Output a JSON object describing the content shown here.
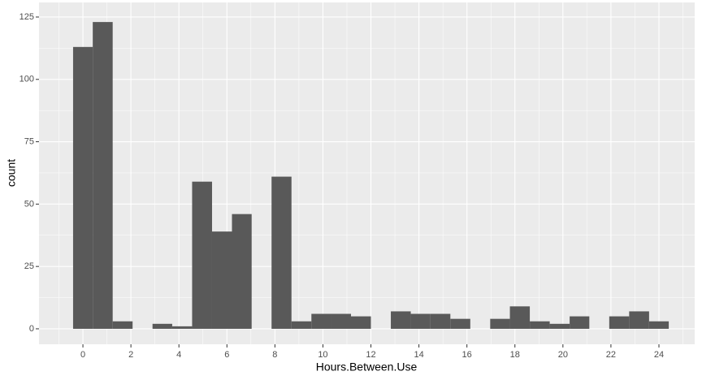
{
  "chart_data": {
    "type": "histogram",
    "xlabel": "Hours.Between.Use",
    "ylabel": "count",
    "bins": [
      -0.41,
      0.41,
      1.24,
      2.07,
      2.9,
      3.72,
      4.55,
      5.38,
      6.21,
      7.03,
      7.86,
      8.69,
      9.52,
      10.34,
      11.17,
      12.0,
      12.83,
      13.66,
      14.48,
      15.31,
      16.14,
      16.97,
      17.79,
      18.62,
      19.45,
      20.28,
      21.1,
      21.93,
      22.76,
      23.59,
      24.41
    ],
    "values": [
      113,
      123,
      3,
      0,
      2,
      1,
      59,
      39,
      46,
      0,
      61,
      3,
      6,
      6,
      5,
      0,
      7,
      6,
      6,
      4,
      0,
      4,
      9,
      3,
      2,
      5,
      0,
      5,
      7,
      3
    ],
    "color": "#595959",
    "xlim": [
      -1.83,
      25.49
    ],
    "ylim": [
      -6.2,
      130.85
    ],
    "xticks": [
      0,
      2,
      4,
      6,
      8,
      10,
      12,
      14,
      16,
      18,
      20,
      22,
      24
    ],
    "yticks": [
      0,
      25,
      50,
      75,
      100,
      125
    ],
    "grid": true
  }
}
